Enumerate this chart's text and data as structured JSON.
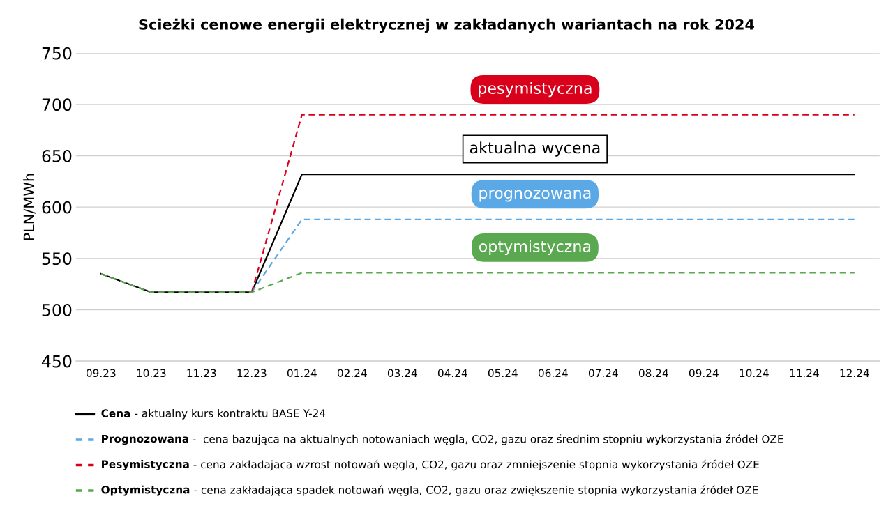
{
  "chart_data": {
    "type": "line",
    "title": "Scieżki cenowe energii elektrycznej w zakładanych wariantach na rok 2024",
    "ylabel": "PLN/MWh",
    "categories": [
      "09.23",
      "10.23",
      "11.23",
      "12.23",
      "01.24",
      "02.24",
      "03.24",
      "04.24",
      "05.24",
      "06.24",
      "07.24",
      "08.24",
      "09.24",
      "10.24",
      "11.24",
      "12.24"
    ],
    "series": [
      {
        "name": "Cena",
        "color": "#000000",
        "line_style": "solid",
        "values": [
          535,
          517,
          517,
          517,
          632,
          632,
          632,
          632,
          632,
          632,
          632,
          632,
          632,
          632,
          632,
          632
        ]
      },
      {
        "name": "Prognozowana",
        "color": "#5aa9e6",
        "line_style": "dashed",
        "values": [
          null,
          null,
          null,
          517,
          588,
          588,
          588,
          588,
          588,
          588,
          588,
          588,
          588,
          588,
          588,
          588
        ]
      },
      {
        "name": "Pesymistyczna",
        "color": "#d9001b",
        "line_style": "dashed",
        "values": [
          null,
          null,
          null,
          517,
          690,
          690,
          690,
          690,
          690,
          690,
          690,
          690,
          690,
          690,
          690,
          690
        ]
      },
      {
        "name": "Optymistyczna",
        "color": "#5aa84f",
        "line_style": "dashed",
        "values": [
          535,
          517,
          517,
          517,
          536,
          536,
          536,
          536,
          536,
          536,
          536,
          536,
          536,
          536,
          536,
          536
        ]
      }
    ],
    "annotations": [
      "aktualna wycena",
      "prognozowana",
      "pesymistyczna",
      "optymistyczna",
      "- aktualny kurs kontraktu BASE Y-24",
      "-  cena bazująca na aktualnych notowaniach węgla, CO2, gazu oraz średnim stopniu wykorzystania źródeł OZE",
      "- cena zakładająca wzrost notowań węgla, CO2, gazu oraz zmniejszenie stopnia wykorzystania źródeł OZE",
      "- cena zakładająca spadek notowań węgla, CO2, gazu oraz zwiększenie stopnia wykorzystania źródeł OZE"
    ],
    "ylim": [
      450,
      750
    ],
    "yticks": [
      450,
      500,
      550,
      600,
      650,
      700,
      750
    ],
    "grid": "y",
    "legend": "bottom",
    "marker": "none"
  }
}
